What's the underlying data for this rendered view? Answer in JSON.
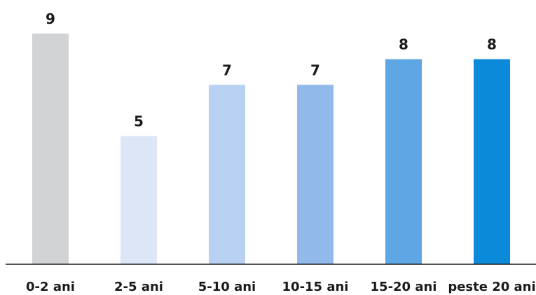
{
  "chart_data": {
    "type": "bar",
    "categories": [
      "0-2 ani",
      "2-5 ani",
      "5-10 ani",
      "10-15 ani",
      "15-20 ani",
      "peste 20 ani"
    ],
    "values": [
      9,
      5,
      7,
      7,
      8,
      8
    ],
    "data_labels": [
      "9",
      "5",
      "7",
      "7",
      "8",
      "8"
    ],
    "colors": [
      "#d1d3d4",
      "#dce6f7",
      "#b8d0f1",
      "#91baeb",
      "#5fa6e5",
      "#0b8ad9"
    ],
    "axis_color": "#1a1a1a",
    "ylim": [
      0,
      9
    ],
    "grid": false,
    "legend": "none"
  }
}
